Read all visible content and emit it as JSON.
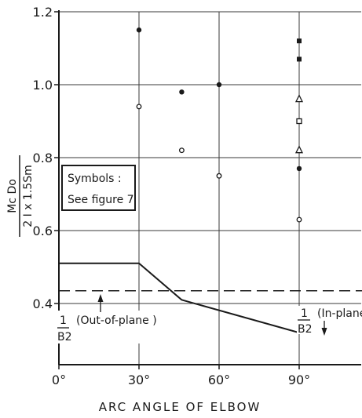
{
  "chart_data": {
    "type": "scatter",
    "title": "",
    "xlabel": "ARC ANGLE OF ELBOW",
    "ylabel_numerator": "Mc Do",
    "ylabel_denominator": "2 I x 1.5Sm",
    "xlim": [
      0,
      115
    ],
    "ylim": [
      0.29,
      1.2
    ],
    "x_ticks": [
      0,
      30,
      60,
      90
    ],
    "x_tick_labels": [
      "0°",
      "30°",
      "60°",
      "90°"
    ],
    "y_ticks": [
      0.4,
      0.6,
      0.8,
      1.0,
      1.2
    ],
    "y_tick_labels": [
      "0.4",
      "0.6",
      "0.8",
      "1.0",
      "1.2"
    ],
    "grid": true,
    "symbols_box": {
      "title": "Symbols :",
      "text": "See figure 7"
    },
    "points": [
      {
        "x": 30,
        "y": 1.15,
        "marker": "filled-circle"
      },
      {
        "x": 30,
        "y": 0.94,
        "marker": "open-circle"
      },
      {
        "x": 46,
        "y": 0.98,
        "marker": "filled-circle"
      },
      {
        "x": 46,
        "y": 0.82,
        "marker": "open-circle"
      },
      {
        "x": 60,
        "y": 1.0,
        "marker": "filled-circle"
      },
      {
        "x": 60,
        "y": 0.75,
        "marker": "open-circle"
      },
      {
        "x": 90,
        "y": 1.12,
        "marker": "filled-square"
      },
      {
        "x": 90,
        "y": 1.07,
        "marker": "filled-square"
      },
      {
        "x": 90,
        "y": 0.96,
        "marker": "triangle"
      },
      {
        "x": 90,
        "y": 0.9,
        "marker": "open-square"
      },
      {
        "x": 90,
        "y": 0.82,
        "marker": "triangle"
      },
      {
        "x": 90,
        "y": 0.77,
        "marker": "filled-circle"
      },
      {
        "x": 90,
        "y": 0.63,
        "marker": "open-circle"
      }
    ],
    "series": [
      {
        "style": "solid",
        "x": [
          0,
          30,
          46,
          90,
          115
        ],
        "y": [
          0.51,
          0.51,
          0.41,
          0.32,
          0.32
        ]
      },
      {
        "style": "dashed",
        "x": [
          0,
          115
        ],
        "y": [
          0.435,
          0.435
        ]
      }
    ],
    "annotations": [
      {
        "id": "out_plane",
        "numerator": "1",
        "denominator": "B2",
        "text": "(Out-of-plane )",
        "x": 0,
        "y": 0.3
      },
      {
        "id": "in_plane",
        "numerator": "1",
        "denominator": "B2",
        "text": "(In-plane)",
        "x": 89,
        "y": 0.36
      }
    ]
  }
}
